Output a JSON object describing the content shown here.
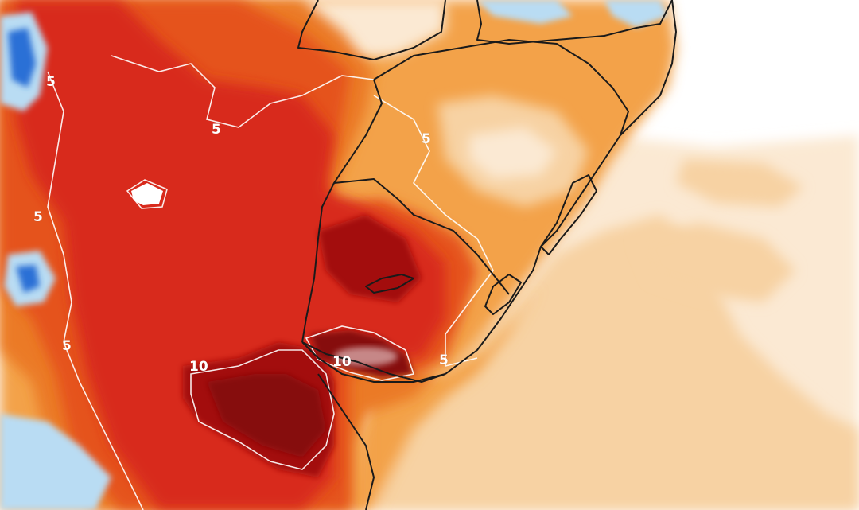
{
  "map": {
    "contour_labels": [
      {
        "id": "label-5-a",
        "text": "5"
      },
      {
        "id": "label-5-b",
        "text": "5"
      },
      {
        "id": "label-5-c",
        "text": "5"
      },
      {
        "id": "label-5-d",
        "text": "5"
      },
      {
        "id": "label-5-e",
        "text": "5"
      },
      {
        "id": "label-5-f",
        "text": "5"
      },
      {
        "id": "label-10-a",
        "text": "10"
      },
      {
        "id": "label-10-b",
        "text": "10"
      }
    ],
    "colors": {
      "ocean_white": "#ffffff",
      "ocean_pale": "#fbe9d3",
      "ocean_light_orange": "#f7d2a3",
      "orange": "#f3a248",
      "deep_orange": "#eb7a25",
      "red_orange": "#e5531e",
      "red": "#d8291b",
      "dark_red": "#a3100f",
      "maroon": "#86080e",
      "cool_blue": "#2a6fd6",
      "light_blue": "#b9dcf3",
      "border_line": "#1a1a1a",
      "contour_line": "#ffffff"
    }
  }
}
